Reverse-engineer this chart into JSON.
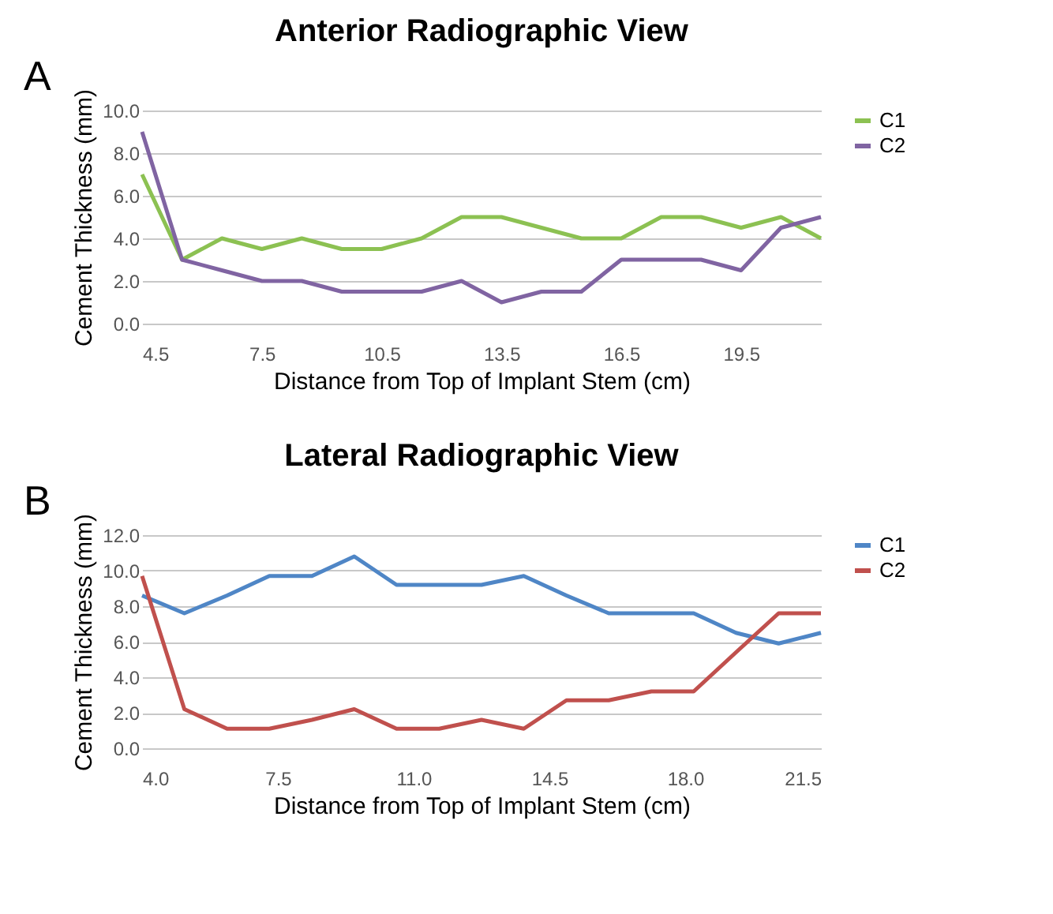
{
  "chart_data": [
    {
      "type": "line",
      "title": "Anterior Radiographic View",
      "xlabel": "Distance from Top of Implant Stem (cm)",
      "ylabel": "Cement Thickness (mm)",
      "annotations": [
        "A"
      ],
      "x": [
        4.5,
        5.5,
        6.5,
        7.5,
        8.5,
        9.5,
        10.5,
        11.5,
        12.5,
        13.5,
        14.5,
        15.5,
        16.5,
        17.5,
        18.5,
        19.5,
        20.5,
        21.5
      ],
      "series": [
        {
          "name": "C1",
          "color": "#8cc152",
          "values": [
            7.0,
            3.0,
            4.0,
            3.5,
            4.0,
            3.5,
            3.5,
            4.0,
            5.0,
            5.0,
            4.5,
            4.0,
            4.0,
            5.0,
            5.0,
            4.5,
            5.0,
            4.0
          ]
        },
        {
          "name": "C2",
          "color": "#8064a2",
          "values": [
            9.0,
            3.0,
            2.5,
            2.0,
            2.0,
            1.5,
            1.5,
            1.5,
            2.0,
            1.0,
            1.5,
            1.5,
            3.0,
            3.0,
            3.0,
            2.5,
            4.5,
            5.0
          ]
        }
      ],
      "xlim": [
        4.5,
        21.5
      ],
      "xticks": [
        4.5,
        7.5,
        10.5,
        13.5,
        16.5,
        19.5
      ],
      "ylim": [
        0,
        10
      ],
      "yticks": [
        {
          "value": 0,
          "label": "0.0"
        },
        {
          "value": 2,
          "label": "2.0"
        },
        {
          "value": 4,
          "label": "4.0"
        },
        {
          "value": 6,
          "label": "6.0"
        },
        {
          "value": 8,
          "label": "8.0"
        },
        {
          "value": 10,
          "label": "10.0"
        }
      ],
      "grid": "y",
      "legend": "right",
      "marker": "none",
      "line_style": "solid"
    },
    {
      "type": "line",
      "title": "Lateral Radiographic View",
      "xlabel": "Distance from Top of Implant Stem (cm)",
      "ylabel": "Cement Thickness (mm)",
      "annotations": [
        "B"
      ],
      "x": [
        4.0,
        5.09,
        6.19,
        7.28,
        8.38,
        9.47,
        10.56,
        11.66,
        12.75,
        13.84,
        14.94,
        16.03,
        17.13,
        18.22,
        19.31,
        20.41,
        21.5
      ],
      "series": [
        {
          "name": "C1",
          "color": "#4f86c6",
          "values": [
            8.6,
            7.6,
            8.6,
            9.7,
            9.7,
            10.8,
            9.2,
            9.2,
            9.2,
            9.7,
            8.6,
            7.6,
            7.6,
            7.6,
            6.5,
            5.9,
            6.5
          ]
        },
        {
          "name": "C2",
          "color": "#c0504d",
          "values": [
            9.7,
            2.2,
            1.1,
            1.1,
            1.6,
            2.2,
            1.1,
            1.1,
            1.6,
            1.1,
            2.7,
            2.7,
            3.2,
            3.2,
            5.4,
            7.6,
            7.6
          ]
        }
      ],
      "xlim": [
        4.0,
        21.5
      ],
      "xticks": [
        {
          "value": 4,
          "label": "4.0"
        },
        7.5,
        {
          "value": 11,
          "label": "11.0"
        },
        14.5,
        {
          "value": 18,
          "label": "18.0"
        },
        21.5
      ],
      "ylim": [
        0,
        12
      ],
      "yticks": [
        {
          "value": 0,
          "label": "0.0"
        },
        {
          "value": 2,
          "label": "2.0"
        },
        {
          "value": 4,
          "label": "4.0"
        },
        {
          "value": 6,
          "label": "6.0"
        },
        {
          "value": 8,
          "label": "8.0"
        },
        {
          "value": 10,
          "label": "10.0"
        },
        {
          "value": 12,
          "label": "12.0"
        }
      ],
      "grid": "y",
      "legend": "right",
      "marker": "none",
      "line_style": "solid"
    }
  ]
}
